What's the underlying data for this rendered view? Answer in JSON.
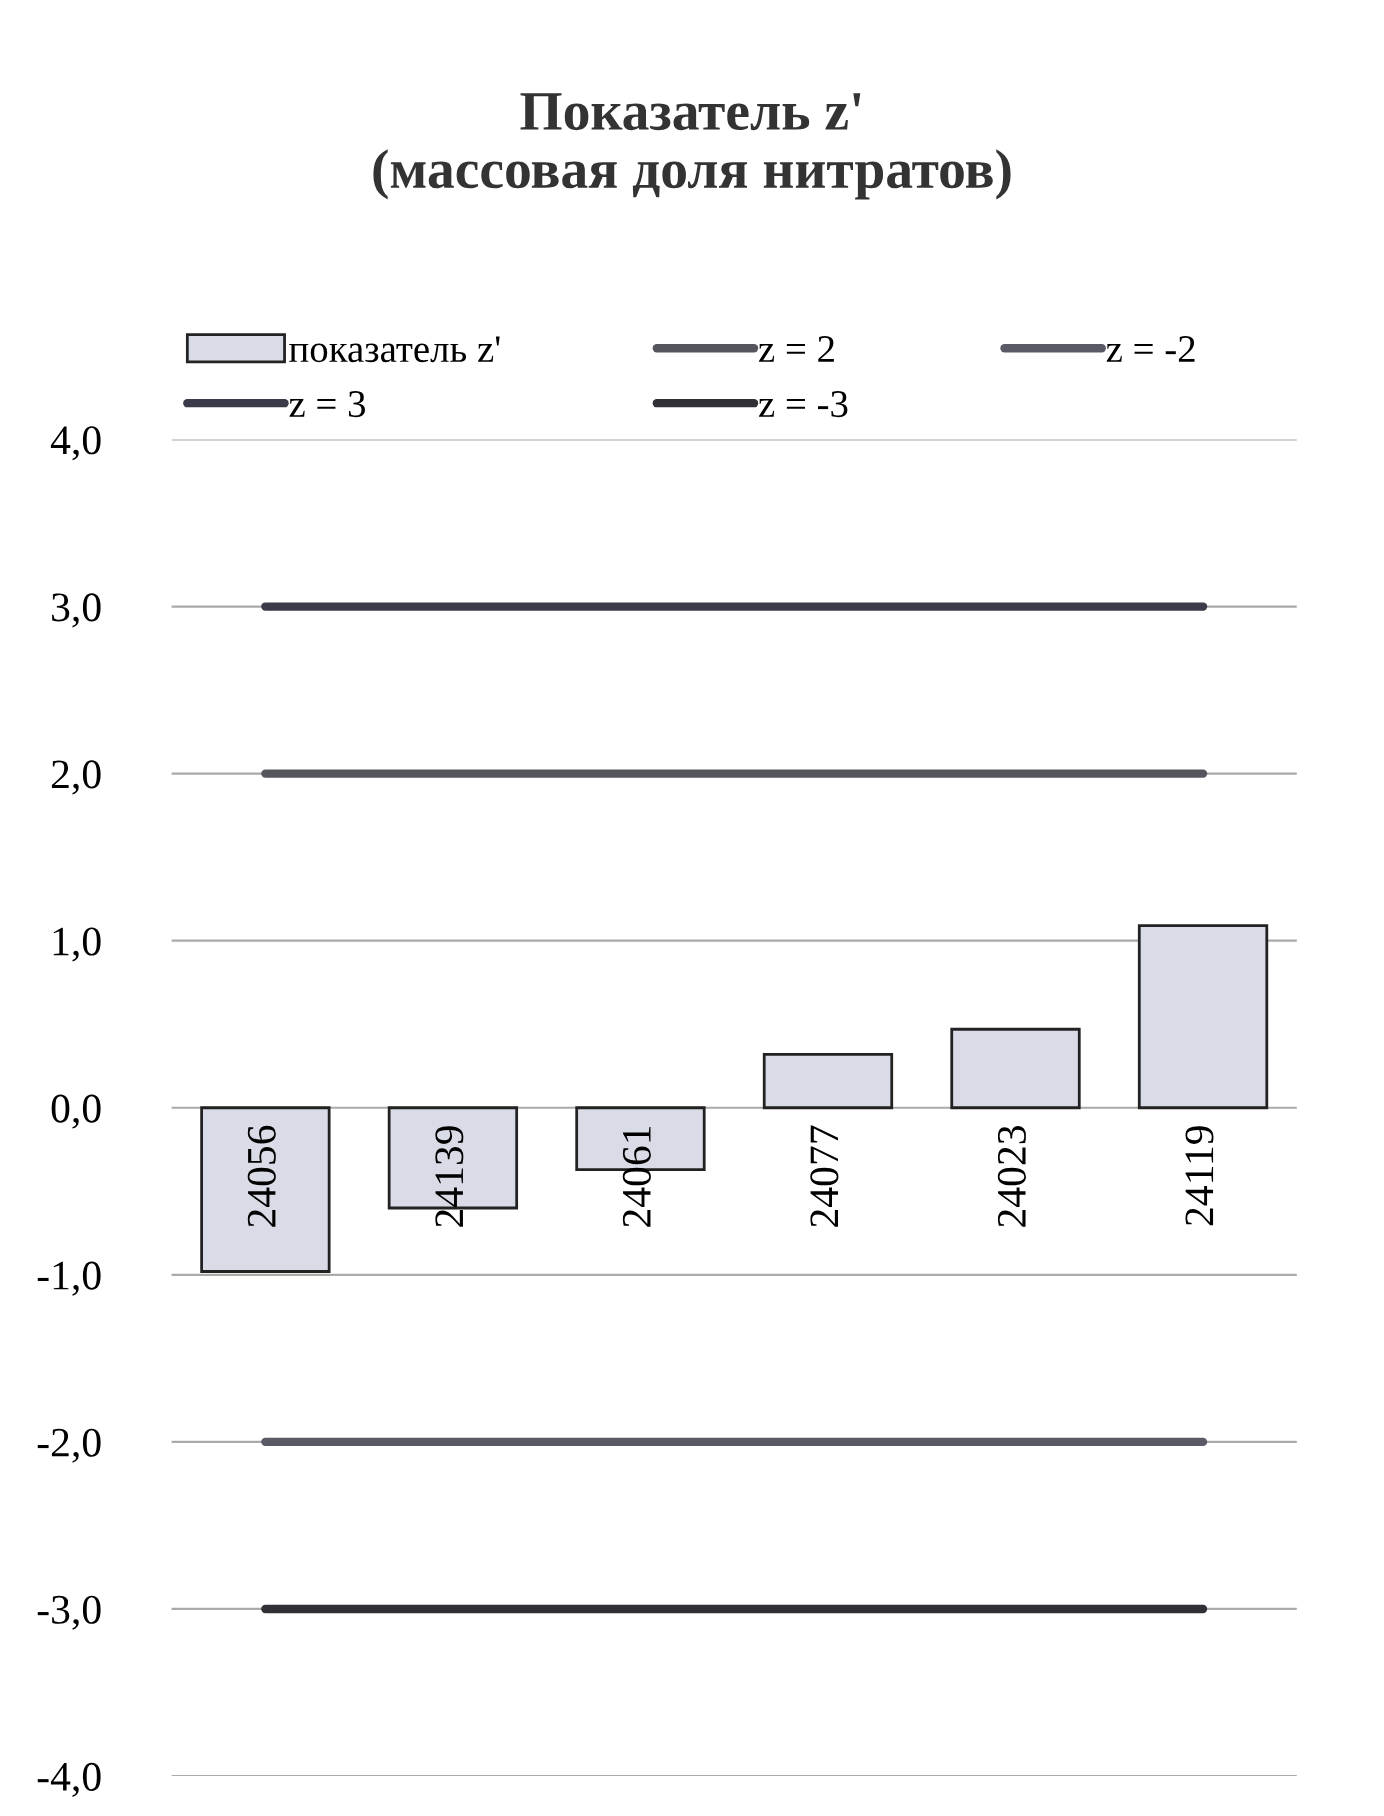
{
  "chart_data": {
    "type": "bar",
    "title": "Показатель z'\n(массовая доля нитратов)",
    "categories": [
      "24056",
      "24139",
      "24061",
      "24077",
      "24023",
      "24119"
    ],
    "series": [
      {
        "name": "показатель z'",
        "type": "bar",
        "color": "#d9dce6",
        "values": [
          -0.98,
          -0.6,
          -0.37,
          0.32,
          0.47,
          1.09
        ]
      },
      {
        "name": "z = 2",
        "type": "line",
        "color": "#55555e",
        "values": [
          2,
          2,
          2,
          2,
          2,
          2
        ]
      },
      {
        "name": "z = -2",
        "type": "line",
        "color": "#5a5a66",
        "values": [
          -2,
          -2,
          -2,
          -2,
          -2,
          -2
        ]
      },
      {
        "name": "z = 3",
        "type": "line",
        "color": "#3a3a48",
        "values": [
          3,
          3,
          3,
          3,
          3,
          3
        ]
      },
      {
        "name": "z = -3",
        "type": "line",
        "color": "#303036",
        "values": [
          -3,
          -3,
          -3,
          -3,
          -3,
          -3
        ]
      }
    ],
    "ylim": [
      -4,
      4
    ],
    "yticks": [
      {
        "value": -4,
        "label": "-4,0"
      },
      {
        "value": -3,
        "label": "-3,0"
      },
      {
        "value": -2,
        "label": "-2,0"
      },
      {
        "value": -1,
        "label": "-1,0"
      },
      {
        "value": 0,
        "label": "0,0"
      },
      {
        "value": 1,
        "label": "1,0"
      },
      {
        "value": 2,
        "label": "2,0"
      },
      {
        "value": 3,
        "label": "3,0"
      },
      {
        "value": 4,
        "label": "4,0"
      }
    ],
    "grid": "y",
    "legend": "top"
  }
}
